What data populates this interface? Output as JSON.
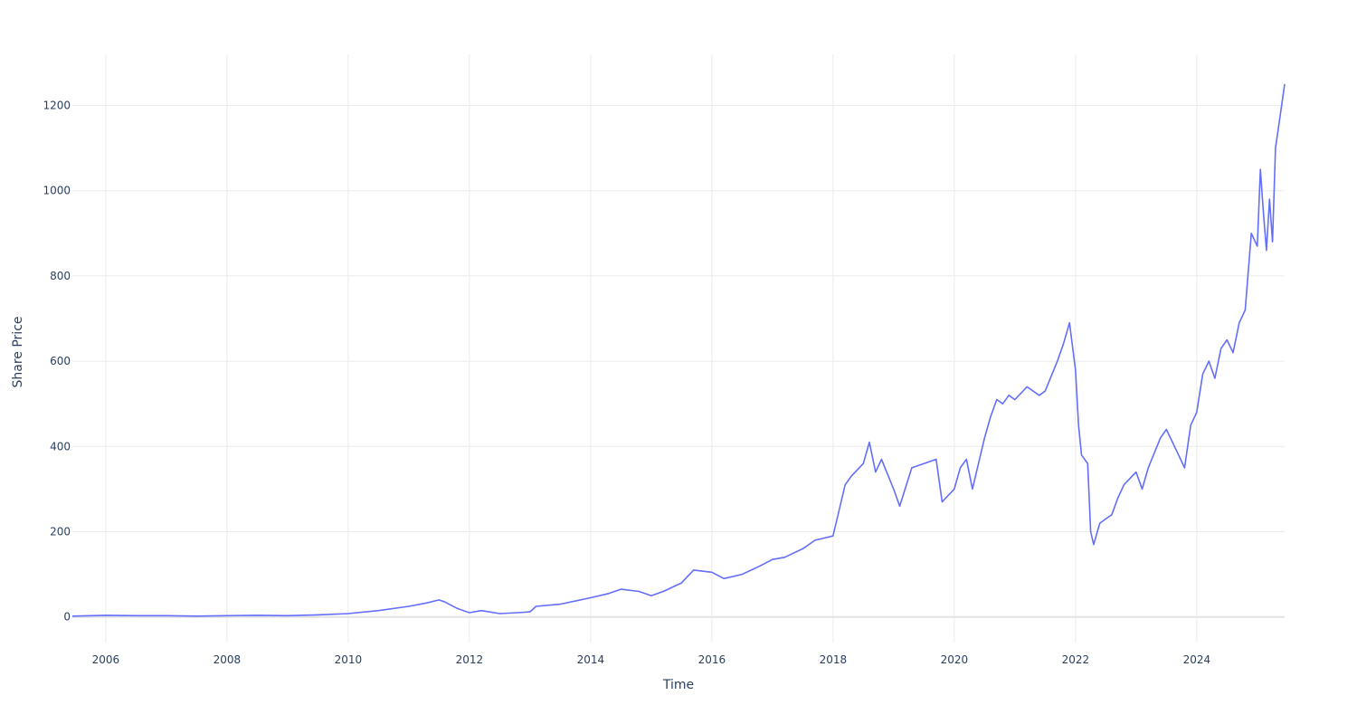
{
  "chart_data": {
    "type": "line",
    "title": "",
    "xlabel": "Time",
    "ylabel": "Share Price",
    "xlim": [
      2005.45,
      2025.45
    ],
    "ylim": [
      -60,
      1320
    ],
    "x_ticks": [
      2006,
      2008,
      2010,
      2012,
      2014,
      2016,
      2018,
      2020,
      2022,
      2024
    ],
    "x_tick_labels": [
      "2006",
      "2008",
      "2010",
      "2012",
      "2014",
      "2016",
      "2018",
      "2020",
      "2022",
      "2024"
    ],
    "y_ticks": [
      0,
      200,
      400,
      600,
      800,
      1000,
      1200
    ],
    "y_tick_labels": [
      "0",
      "200",
      "400",
      "600",
      "800",
      "1000",
      "1200"
    ],
    "grid": true,
    "line_color": "#636efa",
    "series": [
      {
        "x": [
          2005.45,
          2006.0,
          2006.5,
          2007.0,
          2007.5,
          2008.0,
          2008.5,
          2009.0,
          2009.5,
          2010.0,
          2010.5,
          2011.0,
          2011.3,
          2011.5,
          2011.6,
          2011.8,
          2012.0,
          2012.2,
          2012.5,
          2012.8,
          2013.0,
          2013.1,
          2013.5,
          2014.0,
          2014.3,
          2014.5,
          2014.8,
          2015.0,
          2015.2,
          2015.5,
          2015.7,
          2016.0,
          2016.2,
          2016.5,
          2016.8,
          2017.0,
          2017.2,
          2017.5,
          2017.7,
          2018.0,
          2018.1,
          2018.2,
          2018.3,
          2018.5,
          2018.6,
          2018.7,
          2018.8,
          2019.0,
          2019.1,
          2019.3,
          2019.5,
          2019.7,
          2019.8,
          2020.0,
          2020.1,
          2020.2,
          2020.3,
          2020.5,
          2020.6,
          2020.7,
          2020.8,
          2020.9,
          2021.0,
          2021.2,
          2021.4,
          2021.5,
          2021.7,
          2021.8,
          2021.9,
          2022.0,
          2022.05,
          2022.1,
          2022.2,
          2022.25,
          2022.3,
          2022.4,
          2022.5,
          2022.6,
          2022.7,
          2022.8,
          2023.0,
          2023.1,
          2023.2,
          2023.4,
          2023.5,
          2023.7,
          2023.8,
          2023.9,
          2024.0,
          2024.1,
          2024.2,
          2024.3,
          2024.4,
          2024.5,
          2024.6,
          2024.7,
          2024.8,
          2024.9,
          2025.0,
          2025.05,
          2025.1,
          2025.15,
          2025.2,
          2025.25,
          2025.3,
          2025.35,
          2025.4,
          2025.45
        ],
        "y": [
          2,
          4,
          3,
          3,
          2,
          3,
          4,
          3,
          5,
          8,
          15,
          25,
          33,
          40,
          35,
          20,
          10,
          15,
          8,
          10,
          12,
          25,
          30,
          45,
          55,
          65,
          60,
          50,
          60,
          80,
          110,
          105,
          90,
          100,
          120,
          135,
          140,
          160,
          180,
          190,
          250,
          310,
          330,
          360,
          410,
          340,
          370,
          300,
          260,
          350,
          360,
          370,
          270,
          300,
          350,
          370,
          300,
          420,
          470,
          510,
          500,
          520,
          510,
          540,
          520,
          530,
          600,
          640,
          690,
          580,
          450,
          380,
          360,
          200,
          170,
          220,
          230,
          240,
          280,
          310,
          340,
          300,
          350,
          420,
          440,
          380,
          350,
          450,
          480,
          570,
          600,
          560,
          630,
          650,
          620,
          690,
          720,
          900,
          870,
          1050,
          950,
          860,
          980,
          880,
          1100,
          1150,
          1200,
          1250
        ]
      }
    ]
  }
}
